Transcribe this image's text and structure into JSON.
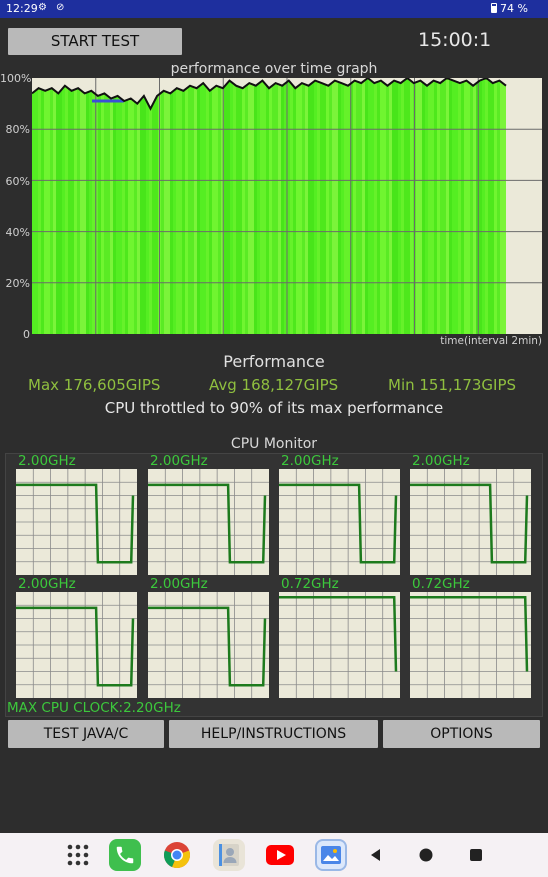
{
  "status_bar": {
    "time": "12:29",
    "battery": "74 %",
    "icons": [
      "gear-icon",
      "do-not-disturb-icon",
      "battery-icon"
    ]
  },
  "toolbar": {
    "start_label": "START TEST",
    "timer": "15:00:1"
  },
  "graph": {
    "title": "performance over time graph",
    "x_axis_label": "time(interval 2min)",
    "y_ticks": [
      "100%",
      "80%",
      "60%",
      "40%",
      "20%",
      "0"
    ]
  },
  "chart_data": {
    "type": "area",
    "title": "performance over time graph",
    "xlabel": "time(interval 2min)",
    "ylabel": "",
    "ylim": [
      0,
      100
    ],
    "grid": true,
    "x_interval": "2min",
    "series": [
      {
        "values": [
          94,
          96,
          95,
          96,
          94,
          97,
          95,
          96,
          94,
          95,
          93,
          94,
          92,
          93,
          91,
          92,
          90,
          93,
          88,
          93,
          95,
          94,
          96,
          95,
          97,
          96,
          98,
          95,
          97,
          96,
          99,
          97,
          96,
          98,
          97,
          99,
          96,
          98,
          97,
          99,
          96,
          98,
          97,
          99,
          98,
          97,
          99,
          98,
          97,
          99,
          98,
          100,
          98,
          99,
          97,
          99,
          98,
          100,
          98,
          99,
          97,
          99,
          98,
          100,
          99,
          98,
          99,
          97,
          99,
          100,
          98,
          99,
          97
        ]
      }
    ]
  },
  "performance": {
    "title": "Performance",
    "max": "Max 176,605GIPS",
    "avg": "Avg 168,127GIPS",
    "min": "Min 151,173GIPS",
    "throttle_text": "CPU throttled to 90% of its max performance"
  },
  "cpu_monitor": {
    "title": "CPU Monitor",
    "cores": [
      {
        "freq": "2.00GHz",
        "trace": [
          0.85,
          0.85,
          0.85,
          0.85,
          0.85,
          0.85,
          0.85,
          0.12,
          0.12,
          0.12,
          0.75
        ]
      },
      {
        "freq": "2.00GHz",
        "trace": [
          0.85,
          0.85,
          0.85,
          0.85,
          0.85,
          0.85,
          0.85,
          0.12,
          0.12,
          0.12,
          0.75
        ]
      },
      {
        "freq": "2.00GHz",
        "trace": [
          0.85,
          0.85,
          0.85,
          0.85,
          0.85,
          0.85,
          0.85,
          0.12,
          0.12,
          0.12,
          0.75
        ]
      },
      {
        "freq": "2.00GHz",
        "trace": [
          0.85,
          0.85,
          0.85,
          0.85,
          0.85,
          0.85,
          0.85,
          0.12,
          0.12,
          0.12,
          0.75
        ]
      },
      {
        "freq": "2.00GHz",
        "trace": [
          0.85,
          0.85,
          0.85,
          0.85,
          0.85,
          0.85,
          0.85,
          0.12,
          0.12,
          0.12,
          0.75
        ]
      },
      {
        "freq": "2.00GHz",
        "trace": [
          0.85,
          0.85,
          0.85,
          0.85,
          0.85,
          0.85,
          0.85,
          0.12,
          0.12,
          0.12,
          0.75
        ]
      },
      {
        "freq": "0.72GHz",
        "trace": [
          0.95,
          0.95,
          0.95,
          0.95,
          0.95,
          0.95,
          0.95,
          0.95,
          0.95,
          0.95,
          0.25
        ]
      },
      {
        "freq": "0.72GHz",
        "trace": [
          0.95,
          0.95,
          0.95,
          0.95,
          0.95,
          0.95,
          0.95,
          0.95,
          0.95,
          0.95,
          0.25
        ]
      }
    ],
    "max_clock": "MAX CPU CLOCK:2.20GHz"
  },
  "buttons": {
    "java": "TEST JAVA/C",
    "help": "HELP/INSTRUCTIONS",
    "options": "OPTIONS"
  },
  "nav_bar": {
    "items": [
      "apps-grid-icon",
      "phone-icon",
      "chrome-icon",
      "contacts-icon",
      "youtube-icon",
      "gallery-icon",
      "back-icon",
      "home-icon",
      "recents-icon"
    ]
  },
  "colors": {
    "status_bar": "#1e2f9e",
    "graph_fill": "#55ee22",
    "graph_line": "#111111",
    "core_trace": "#1d7a1d",
    "label_green": "#3cc83c",
    "stat_green": "#8fbf3f"
  }
}
